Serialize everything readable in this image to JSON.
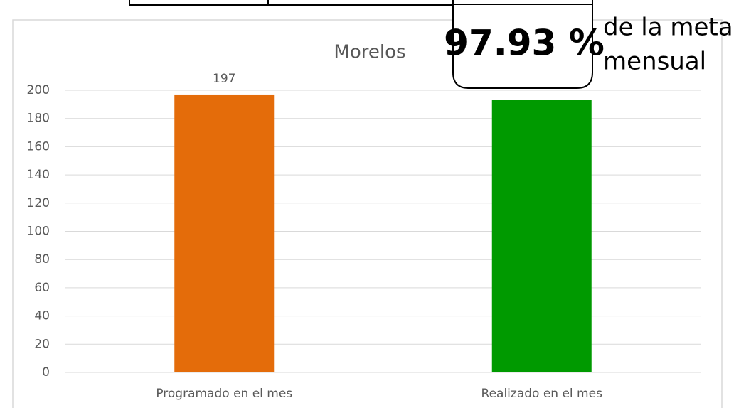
{
  "chart_data": {
    "type": "bar",
    "title": "Morelos",
    "categories": [
      "Programado en el mes",
      "Realizado en el mes"
    ],
    "values": [
      197,
      193
    ],
    "value_labels": [
      "197",
      null
    ],
    "colors": [
      "#e46c0a",
      "#009a00"
    ],
    "ylim": [
      0,
      200
    ],
    "yticks": [
      0,
      20,
      40,
      60,
      80,
      100,
      120,
      140,
      160,
      180,
      200
    ],
    "grid": true,
    "annotations": [
      "97.93 %",
      "de la meta",
      "mensual"
    ]
  }
}
